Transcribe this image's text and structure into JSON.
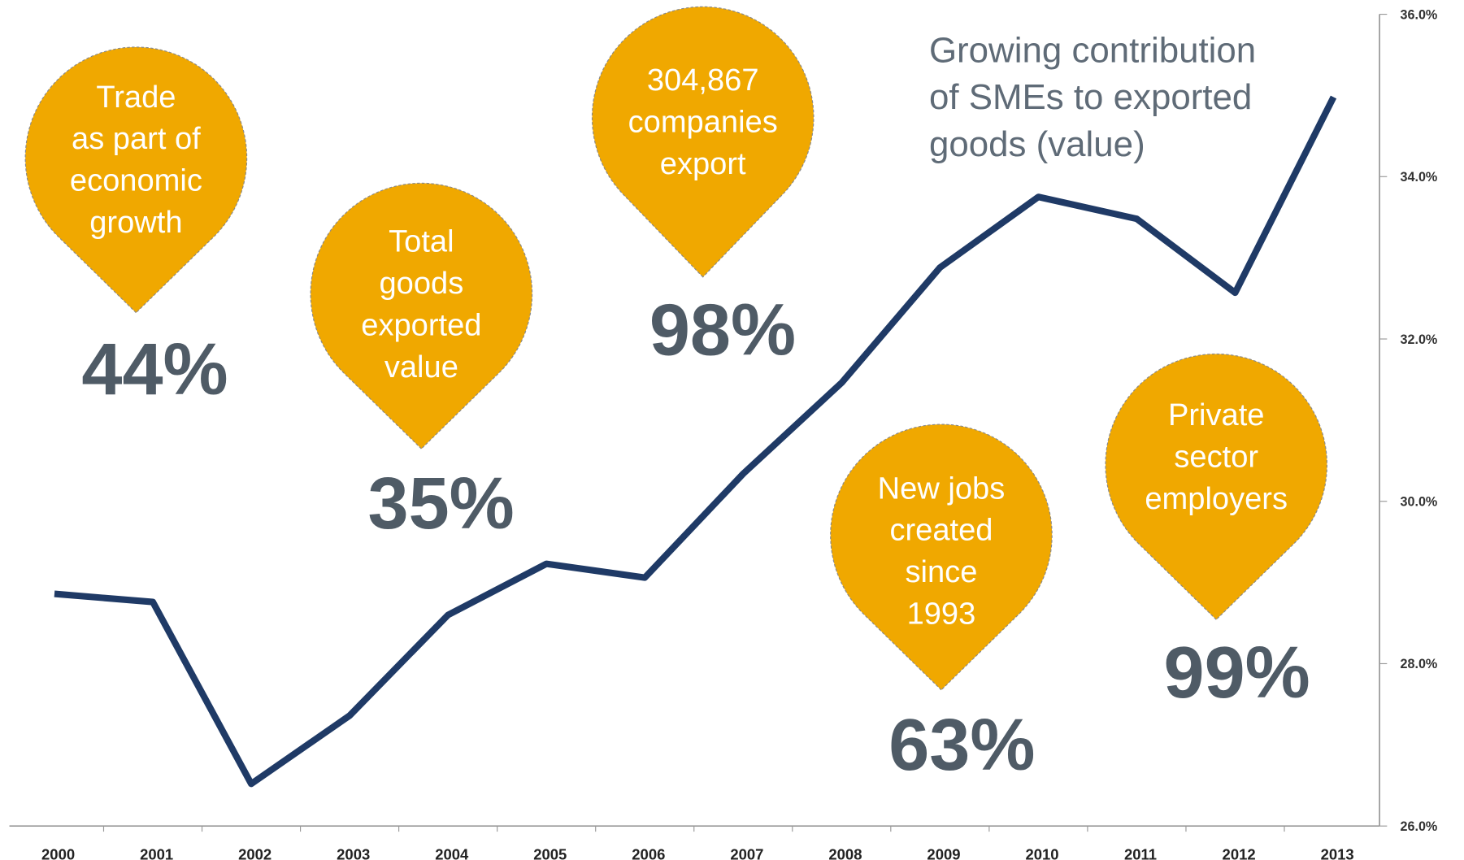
{
  "chart_data": {
    "type": "line",
    "title": [
      "Growing contribution",
      "of SMEs to exported",
      "goods (value)"
    ],
    "categories": [
      "2000",
      "2001",
      "2002",
      "2003",
      "2004",
      "2005",
      "2006",
      "2007",
      "2008",
      "2009",
      "2010",
      "2011",
      "2012",
      "2013"
    ],
    "series": [
      {
        "color": "#1f3a66",
        "values": [
          28.86,
          28.76,
          26.52,
          27.36,
          28.6,
          29.23,
          29.06,
          30.34,
          31.46,
          32.88,
          33.75,
          33.48,
          32.57,
          34.98
        ]
      }
    ],
    "ylim": [
      26,
      36
    ],
    "yticks": [
      {
        "value": 26,
        "label": "26.0%"
      },
      {
        "value": 28,
        "label": "28.0%"
      },
      {
        "value": 30,
        "label": "30.0%"
      },
      {
        "value": 32,
        "label": "32.0%"
      },
      {
        "value": 34,
        "label": "34.0%"
      },
      {
        "value": 36,
        "label": "36.0%"
      }
    ],
    "annotations": [
      {
        "lines": [
          "Trade",
          "as part of",
          "economic",
          "growth"
        ],
        "stat": "44%",
        "color": "#f0a800"
      },
      {
        "lines": [
          "Total",
          "goods",
          "exported",
          "value"
        ],
        "stat": "35%",
        "color": "#f0a800"
      },
      {
        "lines": [
          "304,867",
          "companies",
          "export"
        ],
        "stat": "98%",
        "color": "#f0a800"
      },
      {
        "lines": [
          "New jobs",
          "created",
          "since",
          "1993"
        ],
        "stat": "63%",
        "color": "#f0a800"
      },
      {
        "lines": [
          "Private",
          "sector",
          "employers"
        ],
        "stat": "99%",
        "color": "#f0a800"
      }
    ]
  }
}
